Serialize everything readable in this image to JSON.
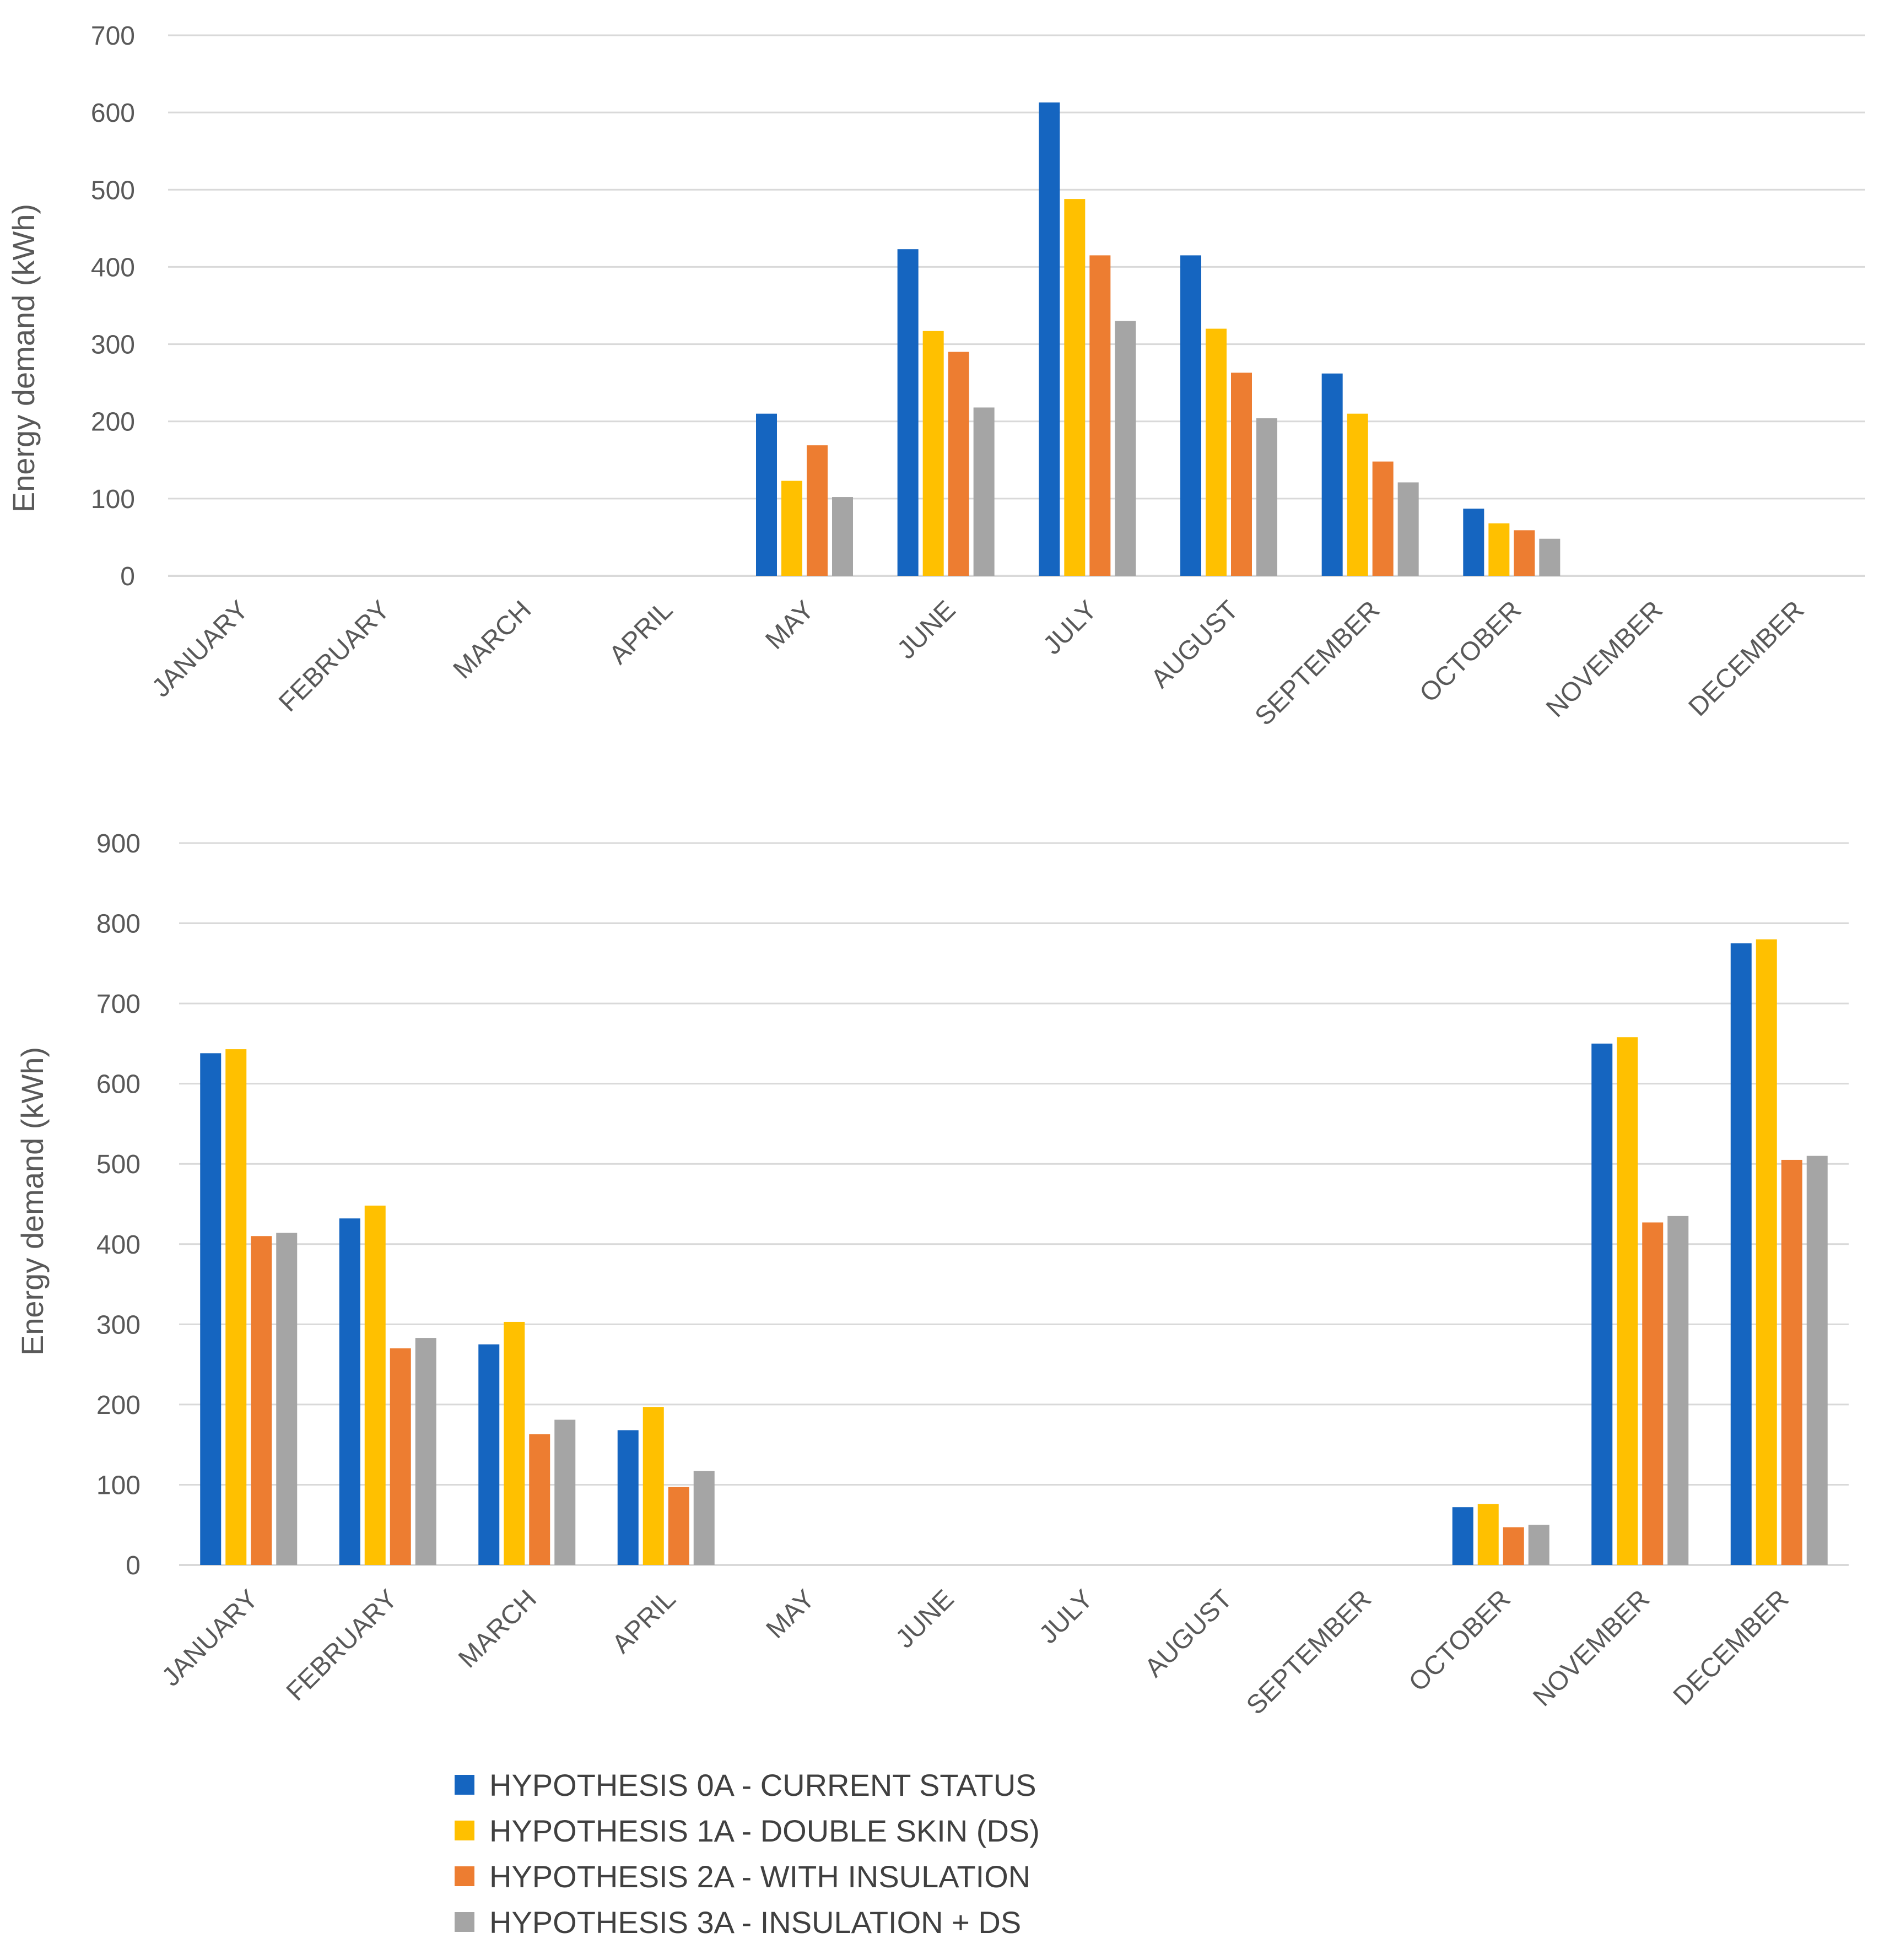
{
  "chart_data": [
    {
      "type": "bar",
      "title": "",
      "xlabel": "",
      "ylabel": "Energy demand (kWh)",
      "ylim": [
        0,
        700
      ],
      "yticks": [
        "0",
        "100",
        "200",
        "300",
        "400",
        "500",
        "600",
        "700"
      ],
      "grid": true,
      "categories": [
        "JANUARY",
        "FEBRUARY",
        "MARCH",
        "APRIL",
        "MAY",
        "JUNE",
        "JULY",
        "AUGUST",
        "SEPTEMBER",
        "OCTOBER",
        "NOVEMBER",
        "DECEMBER"
      ],
      "series": [
        {
          "name": "HYPOTHESIS 0A - CURRENT STATUS",
          "color": "#1565c0",
          "values": [
            0,
            0,
            0,
            0,
            210,
            423,
            613,
            415,
            262,
            87,
            0,
            0
          ]
        },
        {
          "name": "HYPOTHESIS 1A - DOUBLE SKIN (DS)",
          "color": "#ffc000",
          "values": [
            0,
            0,
            0,
            0,
            123,
            317,
            488,
            320,
            210,
            68,
            0,
            0
          ]
        },
        {
          "name": "HYPOTHESIS 2A - WITH INSULATION",
          "color": "#ed7d31",
          "values": [
            0,
            0,
            0,
            0,
            169,
            290,
            415,
            263,
            148,
            59,
            0,
            0
          ]
        },
        {
          "name": "HYPOTHESIS 3A - INSULATION + DS",
          "color": "#a5a5a5",
          "values": [
            0,
            0,
            0,
            0,
            102,
            218,
            330,
            204,
            121,
            48,
            0,
            0
          ]
        }
      ]
    },
    {
      "type": "bar",
      "title": "",
      "xlabel": "",
      "ylabel": "Energy demand (kWh)",
      "ylim": [
        0,
        900
      ],
      "yticks": [
        "0",
        "100",
        "200",
        "300",
        "400",
        "500",
        "600",
        "700",
        "800",
        "900"
      ],
      "grid": true,
      "categories": [
        "JANUARY",
        "FEBRUARY",
        "MARCH",
        "APRIL",
        "MAY",
        "JUNE",
        "JULY",
        "AUGUST",
        "SEPTEMBER",
        "OCTOBER",
        "NOVEMBER",
        "DECEMBER"
      ],
      "series": [
        {
          "name": "HYPOTHESIS 0A - CURRENT STATUS",
          "color": "#1565c0",
          "values": [
            638,
            432,
            275,
            168,
            0,
            0,
            0,
            0,
            0,
            72,
            650,
            775
          ]
        },
        {
          "name": "HYPOTHESIS 1A - DOUBLE SKIN (DS)",
          "color": "#ffc000",
          "values": [
            643,
            448,
            303,
            197,
            0,
            0,
            0,
            0,
            0,
            76,
            658,
            780
          ]
        },
        {
          "name": "HYPOTHESIS 2A - WITH INSULATION",
          "color": "#ed7d31",
          "values": [
            410,
            270,
            163,
            97,
            0,
            0,
            0,
            0,
            0,
            47,
            427,
            505
          ]
        },
        {
          "name": "HYPOTHESIS 3A - INSULATION + DS",
          "color": "#a5a5a5",
          "values": [
            414,
            283,
            181,
            117,
            0,
            0,
            0,
            0,
            0,
            50,
            435,
            510
          ]
        }
      ]
    }
  ],
  "legend": {
    "placement": "bottom-center",
    "items": [
      {
        "label": "HYPOTHESIS 0A - CURRENT STATUS",
        "color": "#1565c0"
      },
      {
        "label": "HYPOTHESIS 1A - DOUBLE SKIN (DS)",
        "color": "#ffc000"
      },
      {
        "label": "HYPOTHESIS 2A - WITH INSULATION",
        "color": "#ed7d31"
      },
      {
        "label": "HYPOTHESIS 3A - INSULATION + DS",
        "color": "#a5a5a5"
      }
    ]
  }
}
